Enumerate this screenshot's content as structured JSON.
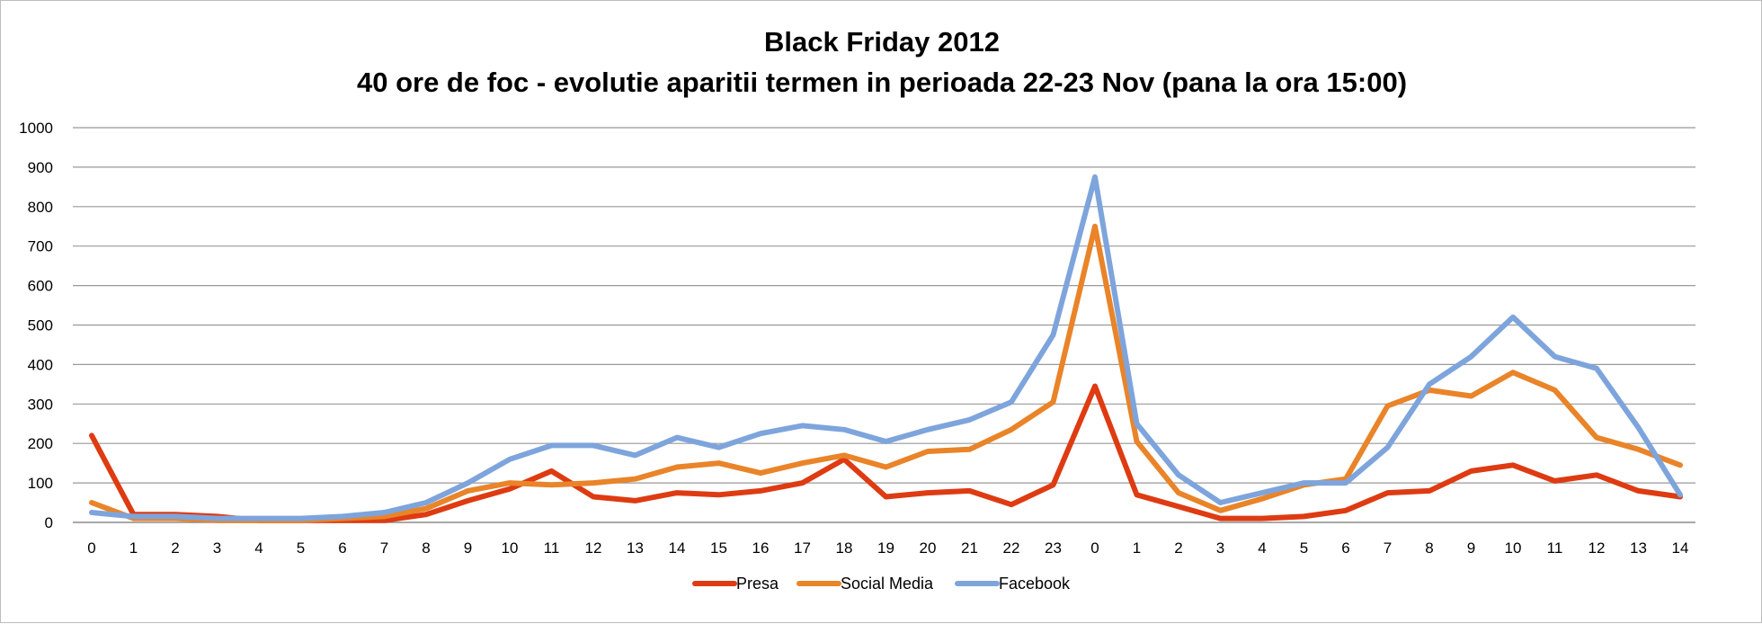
{
  "chart_data": {
    "type": "line",
    "title": "Black Friday 2012",
    "subtitle": "40 ore de foc - evolutie aparitii termen in perioada 22-23 Nov (pana la ora 15:00)",
    "categories": [
      "0",
      "1",
      "2",
      "3",
      "4",
      "5",
      "6",
      "7",
      "8",
      "9",
      "10",
      "11",
      "12",
      "13",
      "14",
      "15",
      "16",
      "17",
      "18",
      "19",
      "20",
      "21",
      "22",
      "23",
      "0",
      "1",
      "2",
      "3",
      "4",
      "5",
      "6",
      "7",
      "8",
      "9",
      "10",
      "11",
      "12",
      "13",
      "14"
    ],
    "ylim": [
      0,
      1000
    ],
    "yticks": [
      "0",
      "100",
      "200",
      "300",
      "400",
      "500",
      "600",
      "700",
      "800",
      "900",
      "1000"
    ],
    "grid": true,
    "legend_position": "bottom",
    "series": [
      {
        "name": "Presa",
        "color": "#de3b12",
        "values": [
          220,
          20,
          20,
          15,
          5,
          5,
          5,
          5,
          20,
          55,
          85,
          130,
          65,
          55,
          75,
          70,
          80,
          100,
          160,
          65,
          75,
          80,
          45,
          95,
          345,
          70,
          40,
          10,
          10,
          15,
          30,
          75,
          80,
          130,
          145,
          105,
          120,
          80,
          65
        ]
      },
      {
        "name": "Social Media",
        "color": "#e98429",
        "values": [
          50,
          10,
          10,
          5,
          5,
          5,
          10,
          15,
          35,
          80,
          100,
          95,
          100,
          110,
          140,
          150,
          125,
          150,
          170,
          140,
          180,
          185,
          235,
          305,
          750,
          205,
          75,
          30,
          60,
          95,
          110,
          295,
          335,
          320,
          380,
          335,
          215,
          185,
          145
        ]
      },
      {
        "name": "Facebook",
        "color": "#7ea4dc",
        "values": [
          25,
          15,
          15,
          10,
          10,
          10,
          15,
          25,
          50,
          100,
          160,
          195,
          195,
          170,
          215,
          190,
          225,
          245,
          235,
          205,
          235,
          260,
          305,
          475,
          875,
          250,
          120,
          50,
          75,
          100,
          100,
          190,
          350,
          420,
          520,
          420,
          390,
          240,
          70
        ]
      }
    ]
  }
}
